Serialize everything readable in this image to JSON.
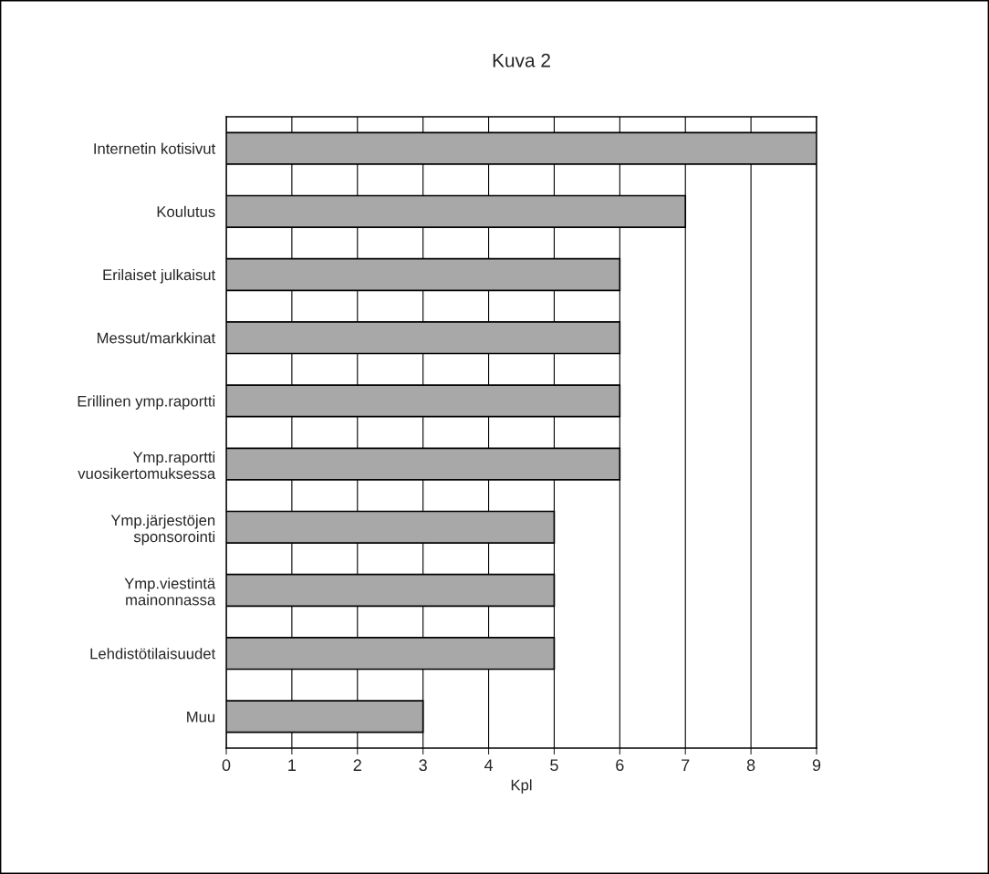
{
  "chart_data": {
    "type": "bar",
    "orientation": "horizontal",
    "title": "Kuva 2",
    "xlabel": "Kpl",
    "categories": [
      "Internetin kotisivut",
      "Koulutus",
      "Erilaiset julkaisut",
      "Messut/markkinat",
      "Erillinen ymp.raportti",
      "Ymp.raportti\nvuosikertomuksessa",
      "Ymp.järjestöjen\nsponsorointi",
      "Ymp.viestintä\nmainonnassa",
      "Lehdistötilaisuudet",
      "Muu"
    ],
    "values": [
      9,
      7,
      6,
      6,
      6,
      6,
      5,
      5,
      5,
      3
    ],
    "color": "#a8a8a8",
    "xlim": [
      0,
      9
    ],
    "xticks": [
      0,
      1,
      2,
      3,
      4,
      5,
      6,
      7,
      8,
      9
    ],
    "grid": "x",
    "legend": false
  }
}
